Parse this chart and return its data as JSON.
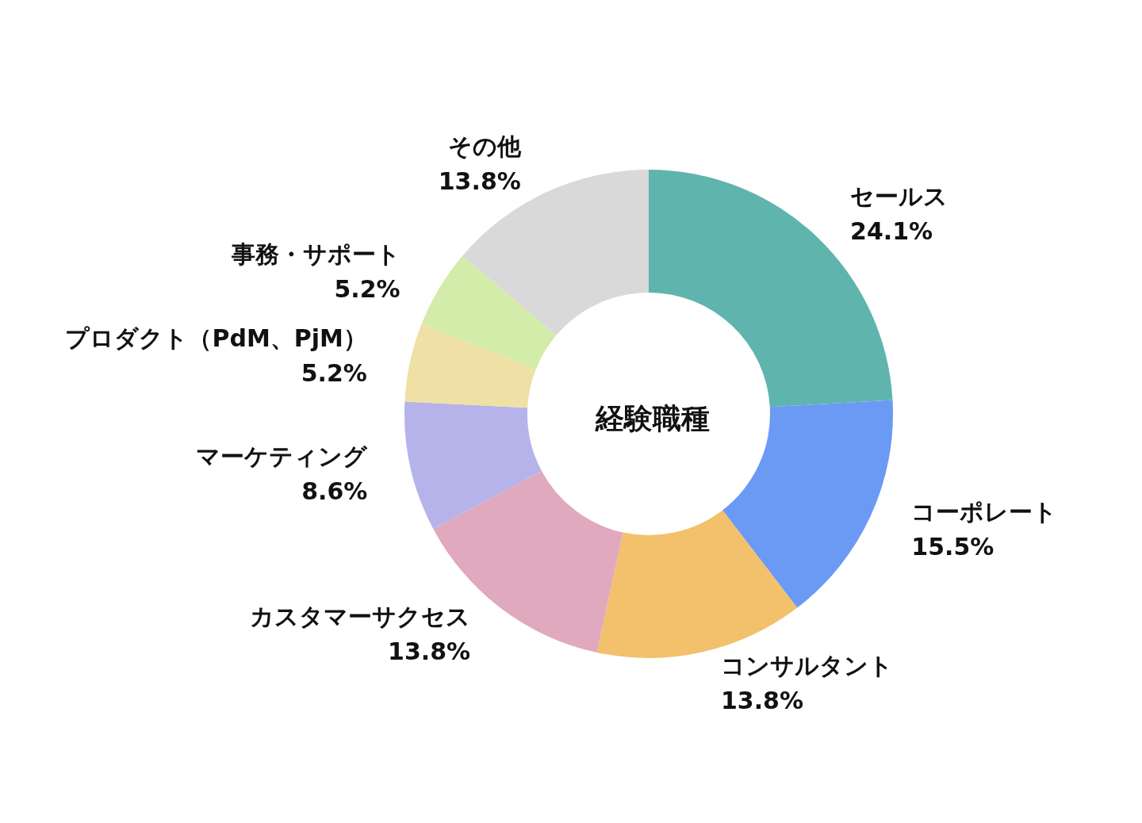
{
  "chart_data": {
    "type": "donut",
    "title": "経験職種",
    "categories": [
      "セールス",
      "コーポレート",
      "コンサルタント",
      "カスタマーサクセス",
      "マーケティング",
      "プロダクト（PdM、PjM）",
      "事務・サポート",
      "その他"
    ],
    "values": [
      24.1,
      15.5,
      13.8,
      13.8,
      8.6,
      5.2,
      5.2,
      13.8
    ],
    "value_labels": [
      "24.1%",
      "15.5%",
      "13.8%",
      "13.8%",
      "8.6%",
      "5.2%",
      "5.2%",
      "13.8%"
    ],
    "colors": [
      "#5fb5ad",
      "#6b9af5",
      "#f3c06b",
      "#e0a9bd",
      "#b5b3ea",
      "#efe0a5",
      "#d3ecaa",
      "#d9d9d9"
    ]
  }
}
